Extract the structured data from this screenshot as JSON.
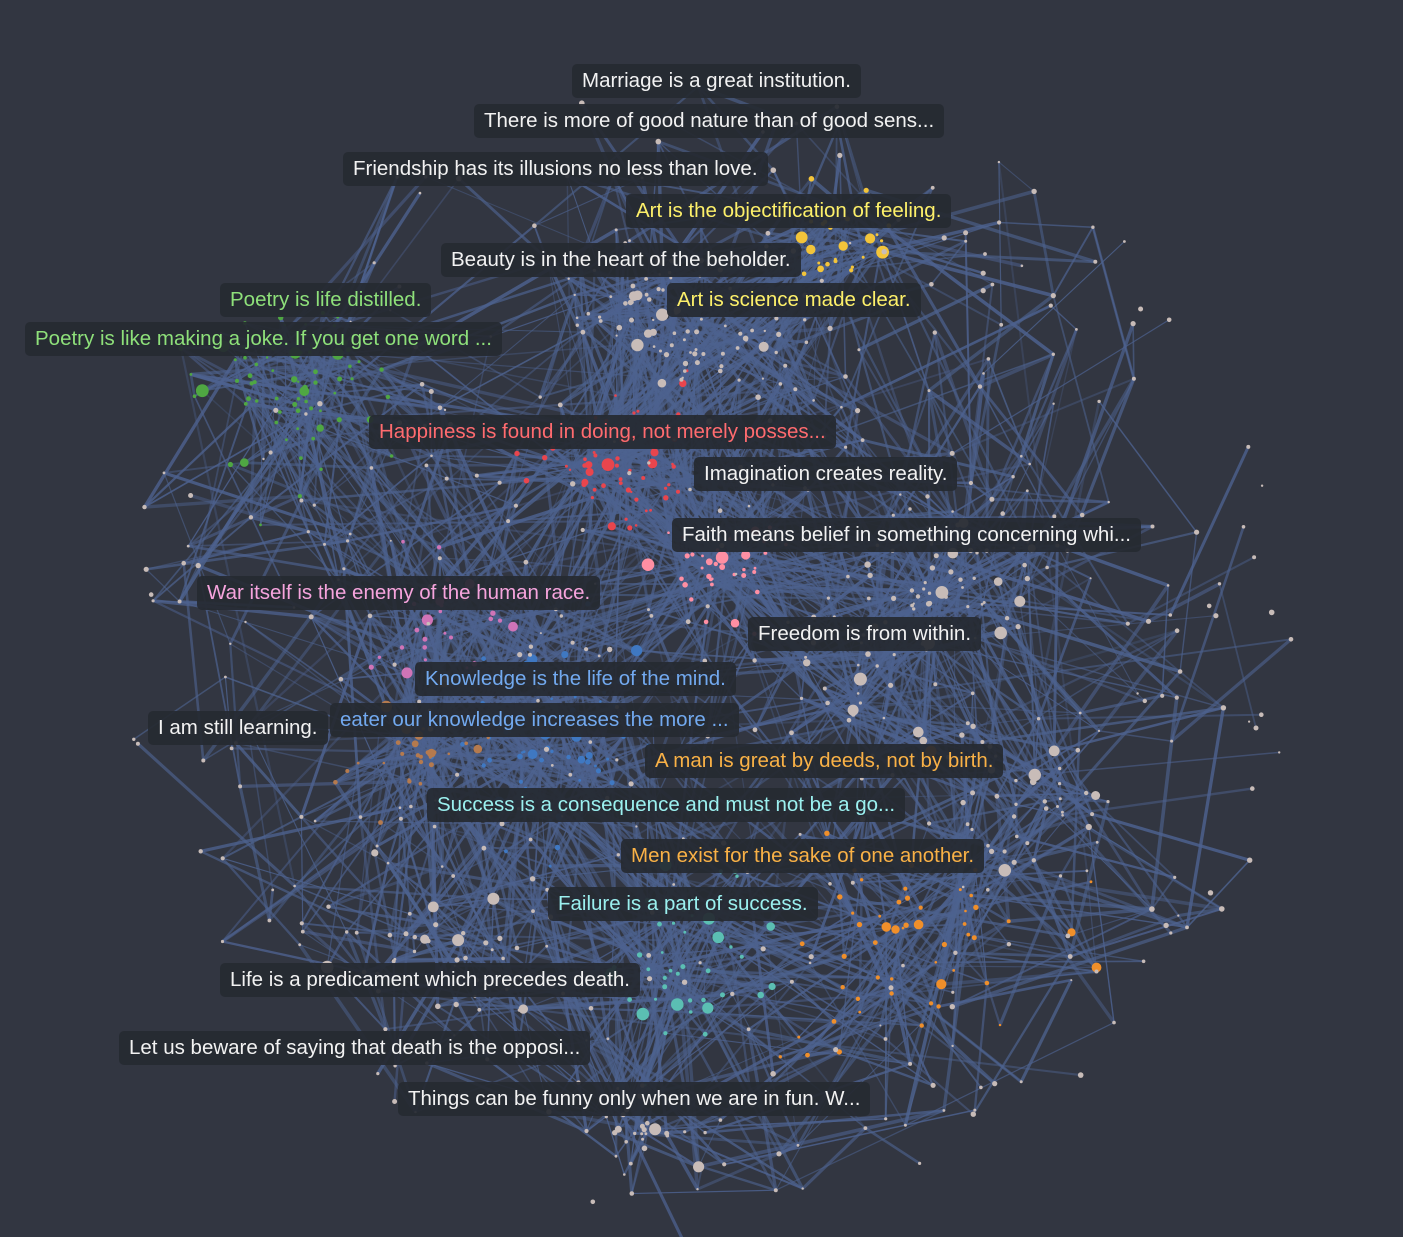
{
  "colors": {
    "background": "#323641",
    "edge": "#4d628f",
    "default_node": "#c8bcb8",
    "clusters": {
      "yellow": "#f3c43a",
      "green": "#4fa742",
      "red": "#e9454d",
      "pink": "#ff8fa3",
      "purple": "#d074b7",
      "blue": "#3f78c2",
      "brown": "#b57a4e",
      "orange": "#f08f2a",
      "teal": "#5bbfb3",
      "grey": "#c8bcb8"
    }
  },
  "labels": [
    {
      "id": "marriage",
      "text": "Marriage is a great institution.",
      "cluster": "default"
    },
    {
      "id": "good-nature",
      "text": "There is more of good nature than of good sens...",
      "cluster": "default"
    },
    {
      "id": "friendship",
      "text": "Friendship has its illusions no less than love.",
      "cluster": "default"
    },
    {
      "id": "art-objectification",
      "text": "Art is the objectification of feeling.",
      "cluster": "yellow"
    },
    {
      "id": "beauty",
      "text": "Beauty is in the heart of the beholder.",
      "cluster": "default"
    },
    {
      "id": "poetry-distilled",
      "text": "Poetry is life distilled.",
      "cluster": "green"
    },
    {
      "id": "art-science",
      "text": "Art is science made clear.",
      "cluster": "yellow"
    },
    {
      "id": "poetry-joke",
      "text": "Poetry is like making a joke. If you get one word ...",
      "cluster": "green"
    },
    {
      "id": "happiness",
      "text": "Happiness is found in doing, not merely posses...",
      "cluster": "red"
    },
    {
      "id": "imagination",
      "text": "Imagination creates reality.",
      "cluster": "default"
    },
    {
      "id": "faith",
      "text": "Faith means belief in something concerning whi...",
      "cluster": "default"
    },
    {
      "id": "war",
      "text": "War itself is the enemy of the human race.",
      "cluster": "pink"
    },
    {
      "id": "freedom",
      "text": "Freedom is from within.",
      "cluster": "default"
    },
    {
      "id": "knowledge",
      "text": "Knowledge is the life of the mind.",
      "cluster": "blue"
    },
    {
      "id": "greater-knowledge",
      "text": "eater our knowledge increases the more ...",
      "cluster": "blue"
    },
    {
      "id": "still-learning",
      "text": "I am still learning.",
      "cluster": "default"
    },
    {
      "id": "man-great",
      "text": "A man is great by deeds, not by birth.",
      "cluster": "orange"
    },
    {
      "id": "success",
      "text": "Success is a consequence and must not be a go...",
      "cluster": "cyan"
    },
    {
      "id": "men-exist",
      "text": "Men exist for the sake of one another.",
      "cluster": "orange"
    },
    {
      "id": "failure",
      "text": "Failure is a part of success.",
      "cluster": "cyan"
    },
    {
      "id": "life-predicament",
      "text": "Life is a predicament which precedes death.",
      "cluster": "default"
    },
    {
      "id": "beware-death",
      "text": "Let us beware of saying that death is the opposi...",
      "cluster": "default"
    },
    {
      "id": "funny",
      "text": "Things can be funny only when we are in fun. W...",
      "cluster": "default"
    }
  ]
}
